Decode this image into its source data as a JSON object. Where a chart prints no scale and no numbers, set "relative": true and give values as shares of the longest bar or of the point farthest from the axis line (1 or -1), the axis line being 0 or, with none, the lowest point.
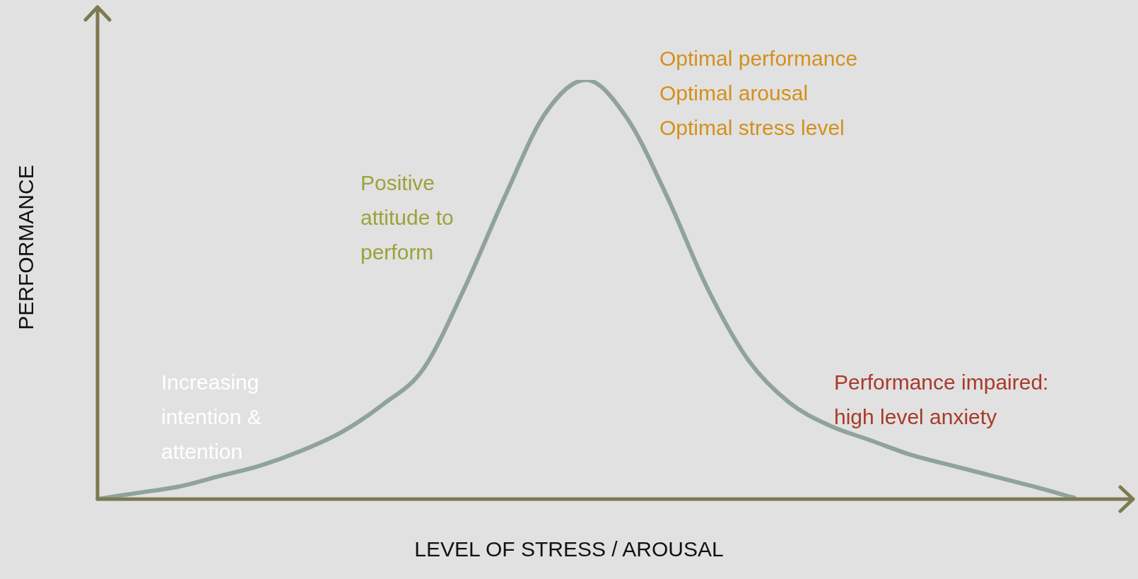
{
  "chart_data": {
    "type": "line",
    "relative": true,
    "xlabel": "LEVEL OF STRESS / AROUSAL",
    "ylabel": "PERFORMANCE",
    "categories": [
      null,
      null,
      null,
      null,
      null,
      null,
      null,
      null,
      null,
      null,
      null,
      null,
      null,
      null,
      null,
      null,
      null,
      null,
      null,
      null,
      null,
      null,
      null,
      null,
      null
    ],
    "series": [
      {
        "color": "#8fa39a",
        "values": [
          0,
          0.015,
          0.03,
          0.055,
          0.08,
          0.115,
          0.16,
          0.225,
          0.31,
          0.5,
          0.72,
          0.92,
          1,
          0.91,
          0.72,
          0.5,
          0.33,
          0.23,
          0.175,
          0.14,
          0.105,
          0.08,
          0.055,
          0.03,
          0.003
        ]
      }
    ],
    "annotations": [
      "Optimal performance\nOptimal arousal\nOptimal stress level",
      "Positive\nattitude to\nperform",
      "Increasing\nintention &\nattention",
      "Performance impaired:\nhigh level anxiety"
    ],
    "grid": false,
    "legend": false,
    "marker": "none",
    "line_style": "solid"
  }
}
